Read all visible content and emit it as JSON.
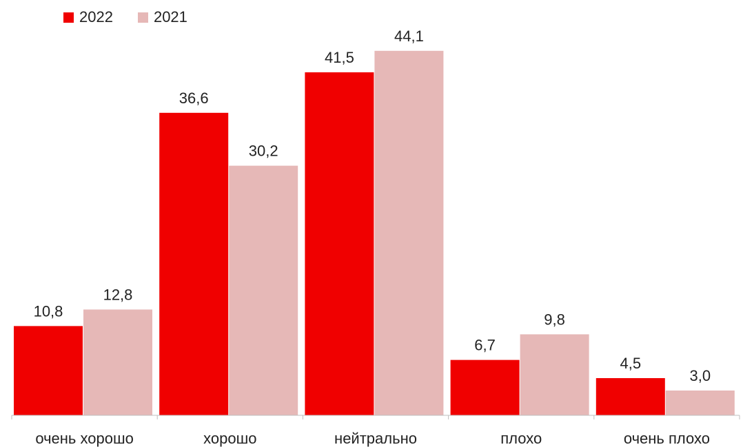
{
  "chart_data": {
    "type": "bar",
    "categories": [
      "очень хорошо",
      "хорошо",
      "нейтрально",
      "плохо",
      "очень плохо"
    ],
    "series": [
      {
        "name": "2022",
        "values": [
          10.8,
          36.6,
          41.5,
          6.7,
          4.5
        ],
        "labels": [
          "10,8",
          "36,6",
          "41,5",
          "6,7",
          "4,5"
        ]
      },
      {
        "name": "2021",
        "values": [
          12.8,
          30.2,
          44.1,
          9.8,
          3.0
        ],
        "labels": [
          "12,8",
          "30,2",
          "44,1",
          "9,8",
          "3,0"
        ]
      }
    ],
    "colors": [
      "#f00000",
      "#e6b8b7"
    ],
    "ylim": [
      0,
      48
    ],
    "grid": false,
    "legend_position": "top-left"
  }
}
